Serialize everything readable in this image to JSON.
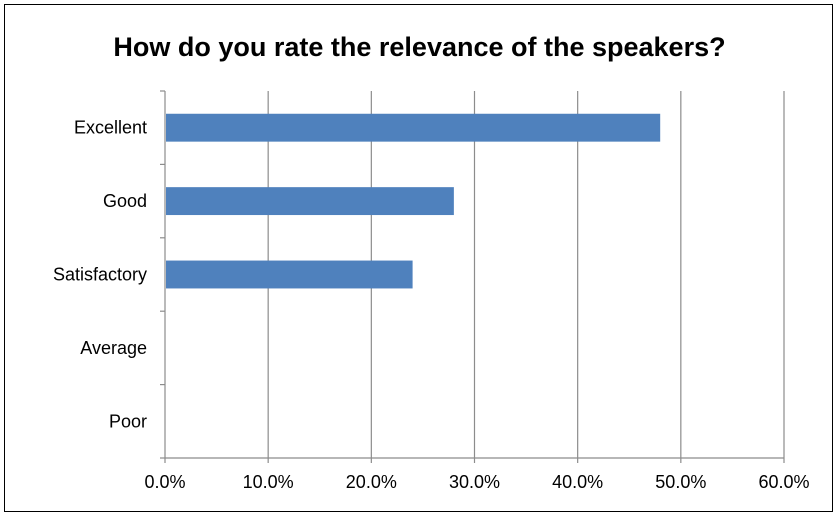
{
  "chart_data": {
    "type": "bar",
    "orientation": "horizontal",
    "title": "How do you rate the relevance of the speakers?",
    "categories": [
      "Excellent",
      "Good",
      "Satisfactory",
      "Average",
      "Poor"
    ],
    "values": [
      0.48,
      0.28,
      0.24,
      0,
      0
    ],
    "xlim": [
      0,
      0.6
    ],
    "x_ticks": [
      0,
      0.1,
      0.2,
      0.3,
      0.4,
      0.5,
      0.6
    ],
    "x_tick_labels": [
      "0.0%",
      "10.0%",
      "20.0%",
      "30.0%",
      "40.0%",
      "50.0%",
      "60.0%"
    ],
    "xlabel": "",
    "ylabel": "",
    "grid": "vertical",
    "legend": "none",
    "bar_color": "#4F81BD",
    "grid_color": "#8c8c8c"
  }
}
